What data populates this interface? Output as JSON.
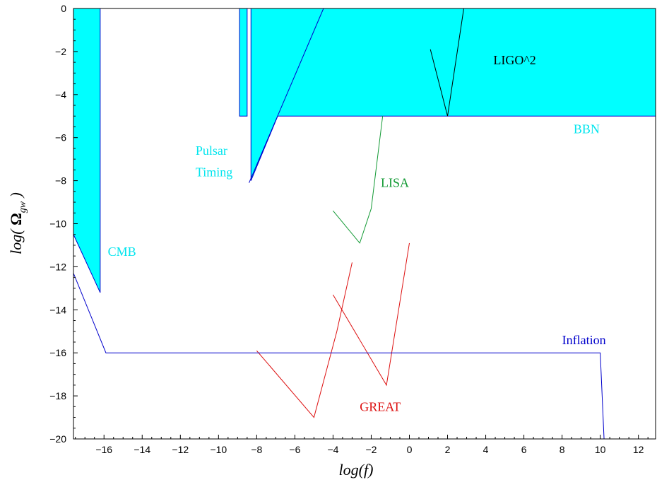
{
  "chart_data": {
    "type": "area",
    "title": "",
    "xlabel": "log(f)",
    "ylabel_prefix": "log( ",
    "ylabel_symbol": "Ω",
    "ylabel_sub": "gw",
    "ylabel_suffix": " )",
    "xlim": [
      -17.6,
      12.9
    ],
    "ylim": [
      -20,
      0
    ],
    "xticks": [
      -16,
      -14,
      -12,
      -10,
      -8,
      -6,
      -4,
      -2,
      0,
      2,
      4,
      6,
      8,
      10,
      12
    ],
    "yticks": [
      0,
      -2,
      -4,
      -6,
      -8,
      -10,
      -12,
      -14,
      -16,
      -18,
      -20
    ],
    "colors": {
      "fill": "#00ffff",
      "edge": "#0000cc",
      "cyan_text": "#00e5ee",
      "lisa": "#119933",
      "great": "#dd1111",
      "inflation": "#0000cc",
      "ligo": "#000000"
    },
    "regions": [
      {
        "name": "CMB",
        "points": [
          [
            -17.6,
            0
          ],
          [
            -16.2,
            0
          ],
          [
            -16.2,
            -13.2
          ],
          [
            -17.6,
            -10.5
          ]
        ]
      },
      {
        "name": "Pulsar Timing",
        "points": [
          [
            -8.9,
            0
          ],
          [
            -8.5,
            0
          ],
          [
            -8.5,
            -5
          ],
          [
            -8.9,
            -5
          ]
        ]
      },
      {
        "name": "BBN",
        "points": [
          [
            -8.3,
            0
          ],
          [
            12.9,
            0
          ],
          [
            12.9,
            -5
          ],
          [
            -6.9,
            -5
          ],
          [
            -8.3,
            -8
          ]
        ]
      }
    ],
    "series": [
      {
        "name": "Pulsar Timing",
        "color": "#0000cc",
        "points": [
          [
            -4.5,
            0
          ],
          [
            -8.4,
            -8.1
          ]
        ]
      },
      {
        "name": "LIGO^2",
        "color": "#000000",
        "points": [
          [
            1.1,
            -1.9
          ],
          [
            2.0,
            -5.0
          ],
          [
            2.85,
            0
          ]
        ]
      },
      {
        "name": "LISA",
        "color": "#119933",
        "points": [
          [
            -4.0,
            -9.4
          ],
          [
            -2.6,
            -10.9
          ],
          [
            -2.0,
            -9.3
          ],
          [
            -1.4,
            -5.0
          ]
        ]
      },
      {
        "name": "GREAT",
        "color": "#dd1111",
        "points": [
          [
            -3.0,
            -11.8
          ],
          [
            -3.8,
            -15.0
          ],
          [
            -5.0,
            -19.0
          ],
          [
            -8.0,
            -15.9
          ]
        ]
      },
      {
        "name": "GREAT",
        "color": "#dd1111",
        "points": [
          [
            0.0,
            -10.9
          ],
          [
            -1.2,
            -17.5
          ],
          [
            -4.0,
            -13.3
          ]
        ]
      },
      {
        "name": "Inflation",
        "color": "#0000cc",
        "points": [
          [
            -17.6,
            -12.3
          ],
          [
            -15.9,
            -16.0
          ],
          [
            10.0,
            -16.0
          ],
          [
            10.2,
            -20
          ]
        ]
      }
    ],
    "annotations": [
      {
        "text": "CMB",
        "x": -15.8,
        "y": -11.5,
        "color": "#00e5ee"
      },
      {
        "text": "Pulsar",
        "x": -11.2,
        "y": -6.8,
        "color": "#00e5ee"
      },
      {
        "text": "Timing",
        "x": -11.2,
        "y": -7.8,
        "color": "#00e5ee"
      },
      {
        "text": "LIGO^2",
        "x": 4.4,
        "y": -2.6,
        "color": "#000000"
      },
      {
        "text": "BBN",
        "x": 8.6,
        "y": -5.8,
        "color": "#00e5ee"
      },
      {
        "text": "LISA",
        "x": -1.5,
        "y": -8.3,
        "color": "#119933"
      },
      {
        "text": "Inflation",
        "x": 8.0,
        "y": -15.6,
        "color": "#0000cc"
      },
      {
        "text": "GREAT",
        "x": -2.6,
        "y": -18.7,
        "color": "#dd1111"
      }
    ],
    "grid": false,
    "legend": "none"
  }
}
